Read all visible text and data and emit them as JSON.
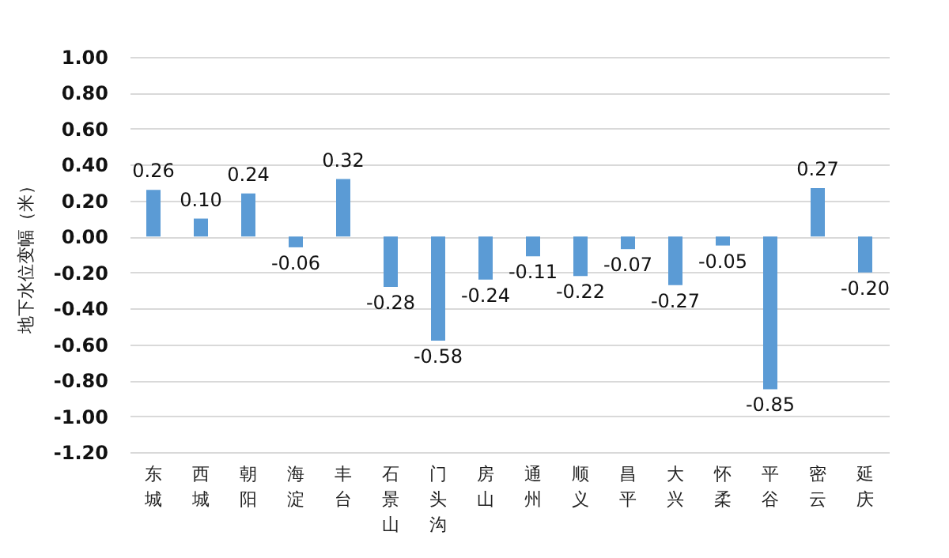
{
  "chart_data": {
    "type": "bar",
    "ylabel": "地下水位变幅（米）",
    "categories": [
      "东城",
      "西城",
      "朝阳",
      "海淀",
      "丰台",
      "石景山",
      "门头沟",
      "房山",
      "通州",
      "顺义",
      "昌平",
      "大兴",
      "怀柔",
      "平谷",
      "密云",
      "延庆"
    ],
    "values": [
      0.26,
      0.1,
      0.24,
      -0.06,
      0.32,
      -0.28,
      -0.58,
      -0.24,
      -0.11,
      -0.22,
      -0.07,
      -0.27,
      -0.05,
      -0.85,
      0.27,
      -0.2
    ],
    "value_labels": [
      "0.26",
      "0.10",
      "0.24",
      "-0.06",
      "0.32",
      "-0.28",
      "-0.58",
      "-0.24",
      "-0.11",
      "-0.22",
      "-0.07",
      "-0.27",
      "-0.05",
      "-0.85",
      "0.27",
      "-0.20"
    ],
    "color": "#5b9bd5",
    "ylim": [
      -1.2,
      1.0
    ],
    "yticks": [
      {
        "value": -1.2,
        "label": "-1.20"
      },
      {
        "value": -1.0,
        "label": "-1.00"
      },
      {
        "value": -0.8,
        "label": "-0.80"
      },
      {
        "value": -0.6,
        "label": "-0.60"
      },
      {
        "value": -0.4,
        "label": "-0.40"
      },
      {
        "value": -0.2,
        "label": "-0.20"
      },
      {
        "value": 0,
        "label": "0.00"
      },
      {
        "value": 0.2,
        "label": "0.20"
      },
      {
        "value": 0.4,
        "label": "0.40"
      },
      {
        "value": 0.6,
        "label": "0.60"
      },
      {
        "value": 0.8,
        "label": "0.80"
      },
      {
        "value": 1.0,
        "label": "1.00"
      }
    ],
    "grid": "y"
  }
}
